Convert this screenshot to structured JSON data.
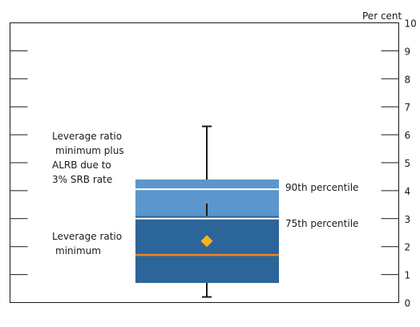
{
  "chart_data": {
    "type": "box",
    "unit_label": "Per cent",
    "ylim": [
      0,
      10
    ],
    "yticks": [
      "0",
      "1",
      "2",
      "3",
      "4",
      "5",
      "6",
      "7",
      "8",
      "9",
      "10"
    ],
    "grid": false,
    "box": {
      "whisker_min": 0.2,
      "lower": 0.7,
      "median": 1.7,
      "mean": 2.2,
      "p75": 3.1,
      "p90": 4.4,
      "whisker_max": 6.3
    },
    "reference_lines": [
      {
        "value": 3.0,
        "label": "Leverage ratio\nminimum"
      },
      {
        "value": 4.05,
        "label": "Leverage ratio\nminimum plus\nALRB due to\n3% SRB rate"
      }
    ],
    "band_labels": [
      {
        "value": 4.5,
        "label": "90th percentile"
      },
      {
        "value": 3.5,
        "label": "75th percentile"
      }
    ],
    "colors": {
      "box_dark": "#2b6599",
      "box_light": "#5b96cc",
      "median": "#f5841f",
      "mean_marker": "#f9b21b",
      "reference_line": "#ffffff",
      "axis": "#1a1a1a",
      "whisker": "#1a1a1a"
    }
  }
}
